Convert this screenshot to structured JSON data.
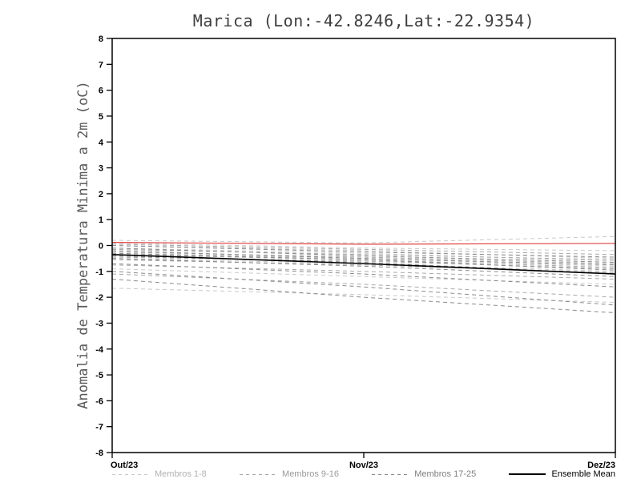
{
  "chart_data": {
    "type": "line",
    "title": "Marica (Lon:-42.8246,Lat:-22.9354)",
    "ylabel": "Anomalia de Temperatura Minima a 2m (oC)",
    "x_tick_labels": [
      "Out/23",
      "Nov/23",
      "Dez/23"
    ],
    "ylim": [
      -8,
      8
    ],
    "ytick_step": 1,
    "grid": false,
    "legend_position": "bottom",
    "member_groups": [
      {
        "label": "Membros 1-8",
        "color": "#c9c9c9",
        "style": "dashed"
      },
      {
        "label": "Membros 9-16",
        "color": "#a8a8a8",
        "style": "dashed"
      },
      {
        "label": "Membros 17-25",
        "color": "#8a8a8a",
        "style": "dashed"
      }
    ],
    "members": [
      {
        "group": 0,
        "values": [
          0.2,
          0.1,
          0.35
        ]
      },
      {
        "group": 0,
        "values": [
          0.1,
          -0.1,
          -0.2
        ]
      },
      {
        "group": 0,
        "values": [
          0.0,
          -0.2,
          -0.5
        ]
      },
      {
        "group": 0,
        "values": [
          -0.1,
          -0.3,
          -0.6
        ]
      },
      {
        "group": 0,
        "values": [
          -0.3,
          -0.5,
          -0.8
        ]
      },
      {
        "group": 0,
        "values": [
          -0.5,
          -0.7,
          -1.0
        ]
      },
      {
        "group": 0,
        "values": [
          -0.9,
          -1.2,
          -1.5
        ]
      },
      {
        "group": 0,
        "values": [
          -1.65,
          -1.9,
          -2.2
        ]
      },
      {
        "group": 1,
        "values": [
          0.05,
          -0.15,
          -0.35
        ]
      },
      {
        "group": 1,
        "values": [
          -0.15,
          -0.35,
          -0.55
        ]
      },
      {
        "group": 1,
        "values": [
          -0.25,
          -0.45,
          -0.7
        ]
      },
      {
        "group": 1,
        "values": [
          -0.35,
          -0.55,
          -0.85
        ]
      },
      {
        "group": 1,
        "values": [
          -0.45,
          -0.6,
          -0.9
        ]
      },
      {
        "group": 1,
        "values": [
          -0.55,
          -0.75,
          -1.05
        ]
      },
      {
        "group": 1,
        "values": [
          -0.75,
          -1.0,
          -1.3
        ]
      },
      {
        "group": 1,
        "values": [
          -1.1,
          -1.5,
          -2.0
        ]
      },
      {
        "group": 2,
        "values": [
          0.0,
          -0.25,
          -0.45
        ]
      },
      {
        "group": 2,
        "values": [
          -0.1,
          -0.4,
          -0.65
        ]
      },
      {
        "group": 2,
        "values": [
          -0.2,
          -0.5,
          -0.75
        ]
      },
      {
        "group": 2,
        "values": [
          -0.3,
          -0.55,
          -0.95
        ]
      },
      {
        "group": 2,
        "values": [
          -0.4,
          -0.65,
          -1.1
        ]
      },
      {
        "group": 2,
        "values": [
          -0.5,
          -0.8,
          -1.2
        ]
      },
      {
        "group": 2,
        "values": [
          -0.7,
          -1.1,
          -1.6
        ]
      },
      {
        "group": 2,
        "values": [
          -1.0,
          -1.6,
          -2.3
        ]
      },
      {
        "group": 2,
        "values": [
          -1.3,
          -2.0,
          -2.6
        ]
      }
    ],
    "ensemble_mean": {
      "label": "Ensemble Mean",
      "color": "#000000",
      "style": "solid",
      "values": [
        -0.35,
        -0.7,
        -1.1
      ]
    },
    "reference_line": {
      "color": "#e04040",
      "style": "solid",
      "values": [
        0.12,
        0.05,
        0.08
      ]
    },
    "legend": [
      {
        "label": "Membros 1-8",
        "color": "#c9c9c9",
        "label_color": "#b2b2b2",
        "dashed": true
      },
      {
        "label": "Membros 9-16",
        "color": "#a8a8a8",
        "label_color": "#9a9a9a",
        "dashed": true
      },
      {
        "label": "Membros 17-25",
        "color": "#8a8a8a",
        "label_color": "#808080",
        "dashed": true
      },
      {
        "label": "Ensemble Mean",
        "color": "#000000",
        "label_color": "#000000",
        "dashed": false
      }
    ]
  }
}
